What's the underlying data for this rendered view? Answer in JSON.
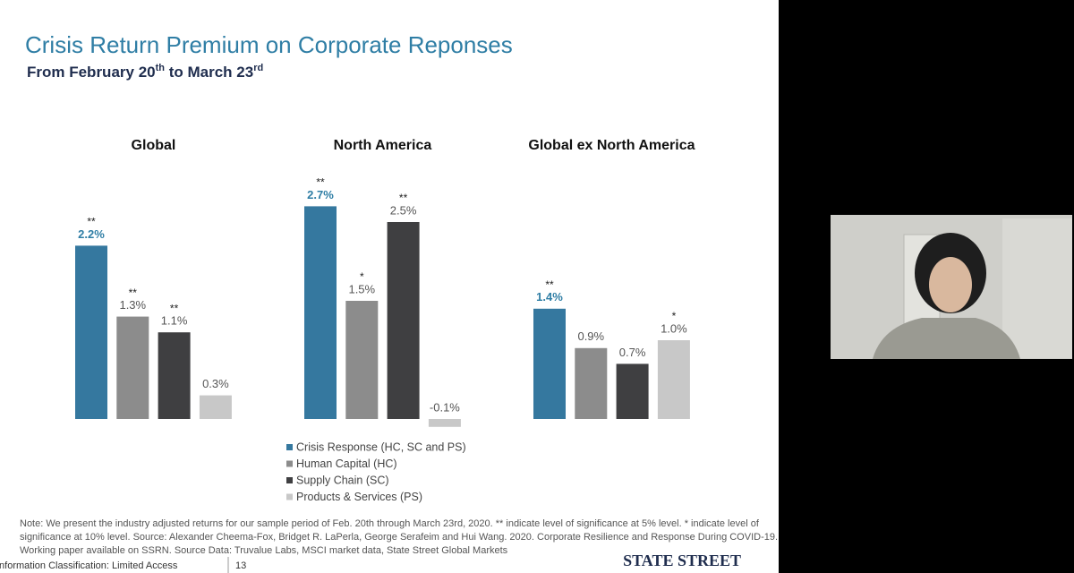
{
  "slide": {
    "title": "Crisis Return Premium on Corporate Reponses",
    "subtitle": [
      "From February 20",
      "th",
      " to March 23",
      "rd"
    ]
  },
  "chart_data": [
    {
      "type": "bar",
      "title": "Global",
      "values": [
        2.2,
        1.3,
        1.1,
        0.3
      ],
      "value_labels": [
        "2.2%",
        "1.3%",
        "1.1%",
        "0.3%"
      ],
      "significance": [
        "**",
        "**",
        "**",
        null
      ]
    },
    {
      "type": "bar",
      "title": "North America",
      "values": [
        2.7,
        1.5,
        2.5,
        -0.1
      ],
      "value_labels": [
        "2.7%",
        "1.5%",
        "2.5%",
        "-0.1%"
      ],
      "significance": [
        "**",
        "*",
        "**",
        null
      ]
    },
    {
      "type": "bar",
      "title": "Global ex North America",
      "values": [
        1.4,
        0.9,
        0.7,
        1.0
      ],
      "value_labels": [
        "1.4%",
        "0.9%",
        "0.7%",
        "1.0%"
      ],
      "significance": [
        "**",
        null,
        null,
        "*"
      ]
    }
  ],
  "legend": [
    {
      "name": "Crisis Response (HC, SC and PS)",
      "color": "#35789f"
    },
    {
      "name": "Human Capital (HC)",
      "color": "#8c8c8c"
    },
    {
      "name": "Supply Chain (SC)",
      "color": "#3f3f41"
    },
    {
      "name": "Products & Services (PS)",
      "color": "#c8c8c8"
    }
  ],
  "note": "Note: We present the industry adjusted returns for our sample period of Feb. 20th through March 23rd, 2020.  ** indicate level of significance at 5% level. * indicate level of significance at 10% level. Source: Alexander Cheema-Fox, Bridget R. LaPerla, George Serafeim and Hui Wang. 2020. Corporate Resilience and Response During COVID-19. Working paper available on SSRN. Source Data: Truvalue Labs, MSCI market data, State Street Global Markets",
  "footer": {
    "classification": "Information Classification: Limited Access",
    "page": "13",
    "logo": "STATE STREET"
  }
}
